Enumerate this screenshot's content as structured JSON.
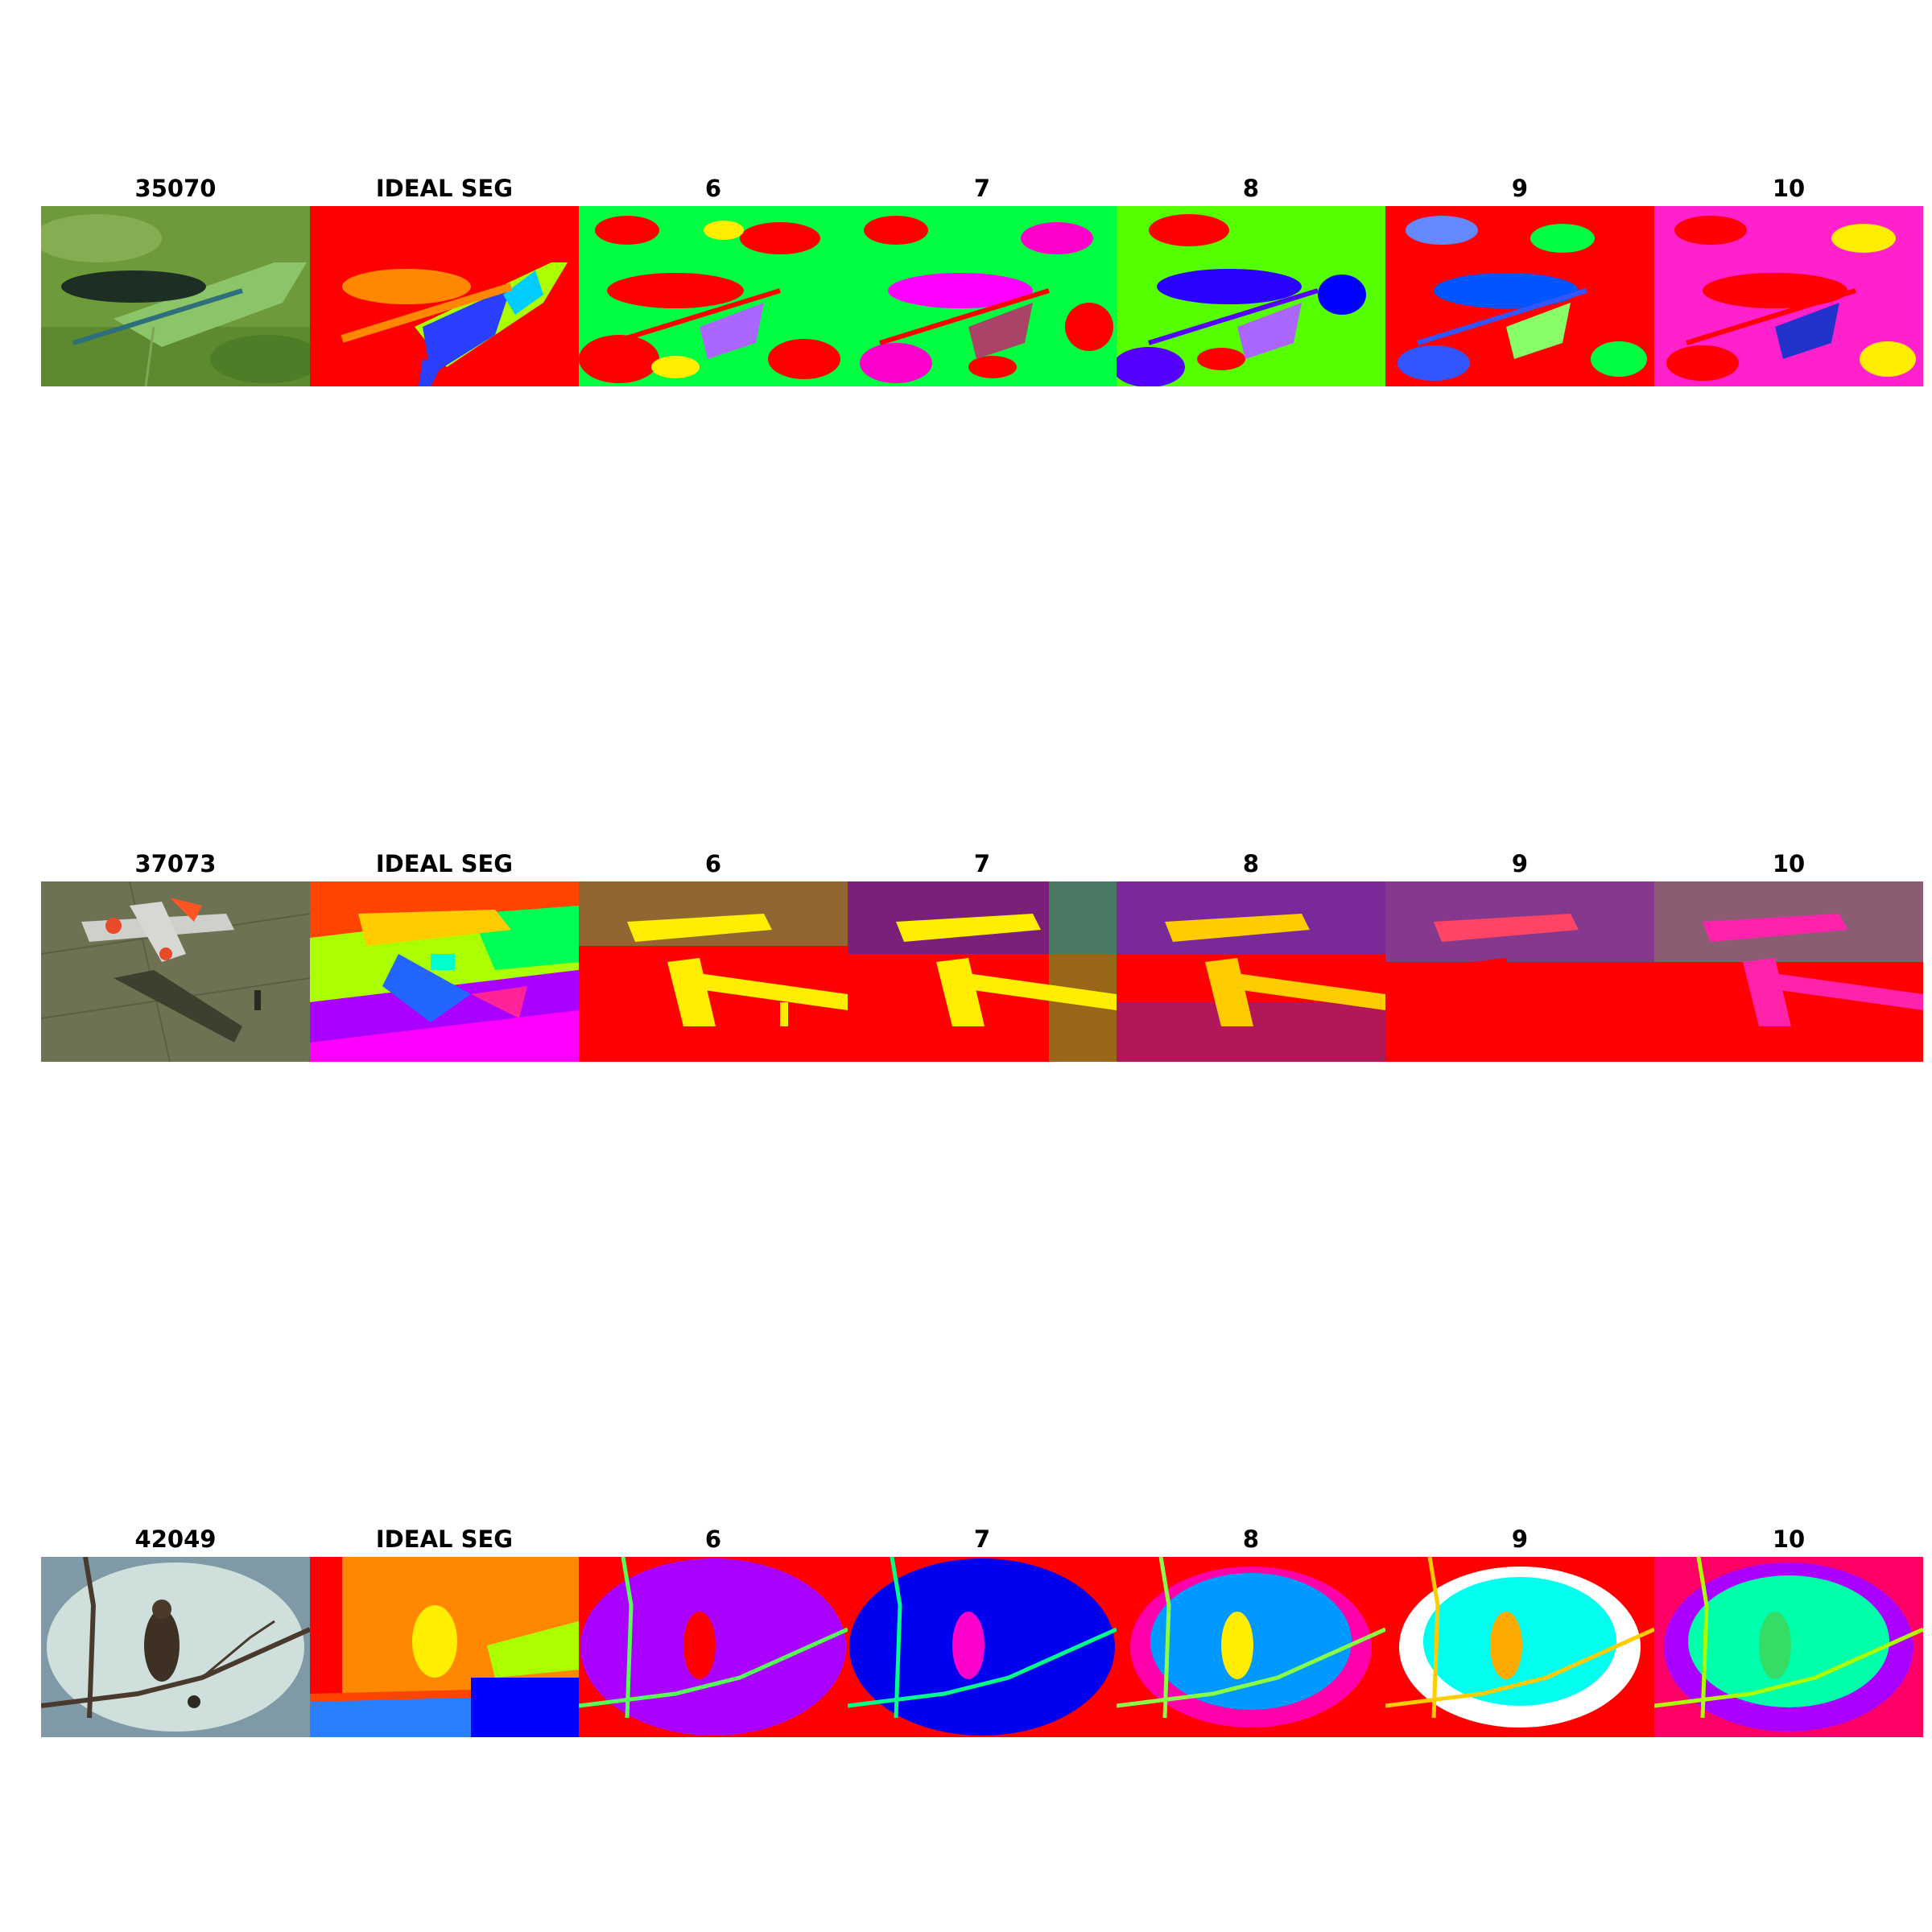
{
  "rows": [
    {
      "image_id": "35070",
      "subject": "dragonfly",
      "panels": [
        {
          "title": "35070",
          "kind": "photo"
        },
        {
          "title": "IDEAL SEG",
          "kind": "ground-truth"
        },
        {
          "title": "6",
          "kind": "clustering"
        },
        {
          "title": "7",
          "kind": "clustering"
        },
        {
          "title": "8",
          "kind": "clustering"
        },
        {
          "title": "9",
          "kind": "clustering"
        },
        {
          "title": "10",
          "kind": "clustering"
        }
      ]
    },
    {
      "image_id": "37073",
      "subject": "airplane",
      "panels": [
        {
          "title": "37073",
          "kind": "photo"
        },
        {
          "title": "IDEAL SEG",
          "kind": "ground-truth"
        },
        {
          "title": "6",
          "kind": "clustering"
        },
        {
          "title": "7",
          "kind": "clustering"
        },
        {
          "title": "8",
          "kind": "clustering"
        },
        {
          "title": "9",
          "kind": "clustering"
        },
        {
          "title": "10",
          "kind": "clustering"
        }
      ]
    },
    {
      "image_id": "42049",
      "subject": "bird on branch",
      "panels": [
        {
          "title": "42049",
          "kind": "photo"
        },
        {
          "title": "IDEAL SEG",
          "kind": "ground-truth"
        },
        {
          "title": "6",
          "kind": "clustering"
        },
        {
          "title": "7",
          "kind": "clustering"
        },
        {
          "title": "8",
          "kind": "clustering"
        },
        {
          "title": "9",
          "kind": "clustering"
        },
        {
          "title": "10",
          "kind": "clustering"
        }
      ]
    }
  ],
  "colors": {
    "red": "#ff0000",
    "green": "#00ff40",
    "lime": "#55ff00",
    "magenta": "#ff00cc",
    "violet": "#aa00ff",
    "blue": "#0000ff",
    "azure": "#0099ff",
    "cyan": "#00ffff",
    "yellow": "#ffee00",
    "orange": "#ff8800",
    "chartreuse": "#aaff00"
  }
}
